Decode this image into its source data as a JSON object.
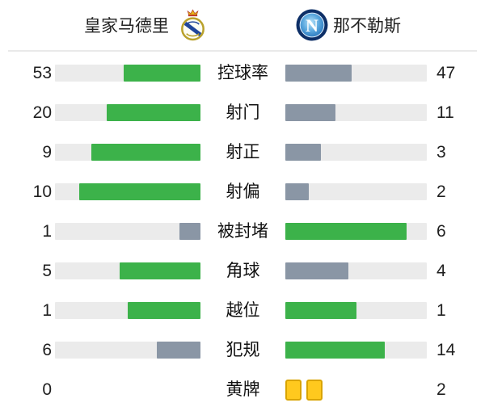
{
  "teams": {
    "home": {
      "name": "皇家马德里",
      "crest": "real-madrid-crest"
    },
    "away": {
      "name": "那不勒斯",
      "crest": "napoli-crest"
    }
  },
  "colors": {
    "win_green": "#3cb24a",
    "lose_gray": "#8a96a5",
    "bar_track": "#ebebeb",
    "yellow_card": "#ffc91e",
    "yellow_card_border": "#d9a400"
  },
  "stats": [
    {
      "label": "控球率",
      "home": 53,
      "away": 47
    },
    {
      "label": "射门",
      "home": 20,
      "away": 11
    },
    {
      "label": "射正",
      "home": 9,
      "away": 3
    },
    {
      "label": "射偏",
      "home": 10,
      "away": 2
    },
    {
      "label": "被封堵",
      "home": 1,
      "away": 6
    },
    {
      "label": "角球",
      "home": 5,
      "away": 4
    },
    {
      "label": "越位",
      "home": 1,
      "away": 1
    },
    {
      "label": "犯规",
      "home": 6,
      "away": 14
    },
    {
      "label": "黄牌",
      "home": 0,
      "away": 2,
      "display": "cards"
    }
  ],
  "chart_data": {
    "type": "bar",
    "subtype": "paired-horizontal-match-stats",
    "categories": [
      "控球率",
      "射门",
      "射正",
      "射偏",
      "被封堵",
      "角球",
      "越位",
      "犯规",
      "黄牌"
    ],
    "series": [
      {
        "name": "皇家马德里",
        "values": [
          53,
          20,
          9,
          10,
          1,
          5,
          1,
          6,
          0
        ]
      },
      {
        "name": "那不勒斯",
        "values": [
          47,
          11,
          3,
          2,
          6,
          4,
          1,
          14,
          2
        ]
      }
    ],
    "title": "",
    "xlabel": "",
    "ylabel": "",
    "legend_position": "top (team names with crests)",
    "grid": false,
    "value_encoding": "each pair of bars filled proportionally to value/(home+away); higher value colored green, lower colored gray, ties both green; yellow-cards row rendered as card icons instead of bars"
  }
}
